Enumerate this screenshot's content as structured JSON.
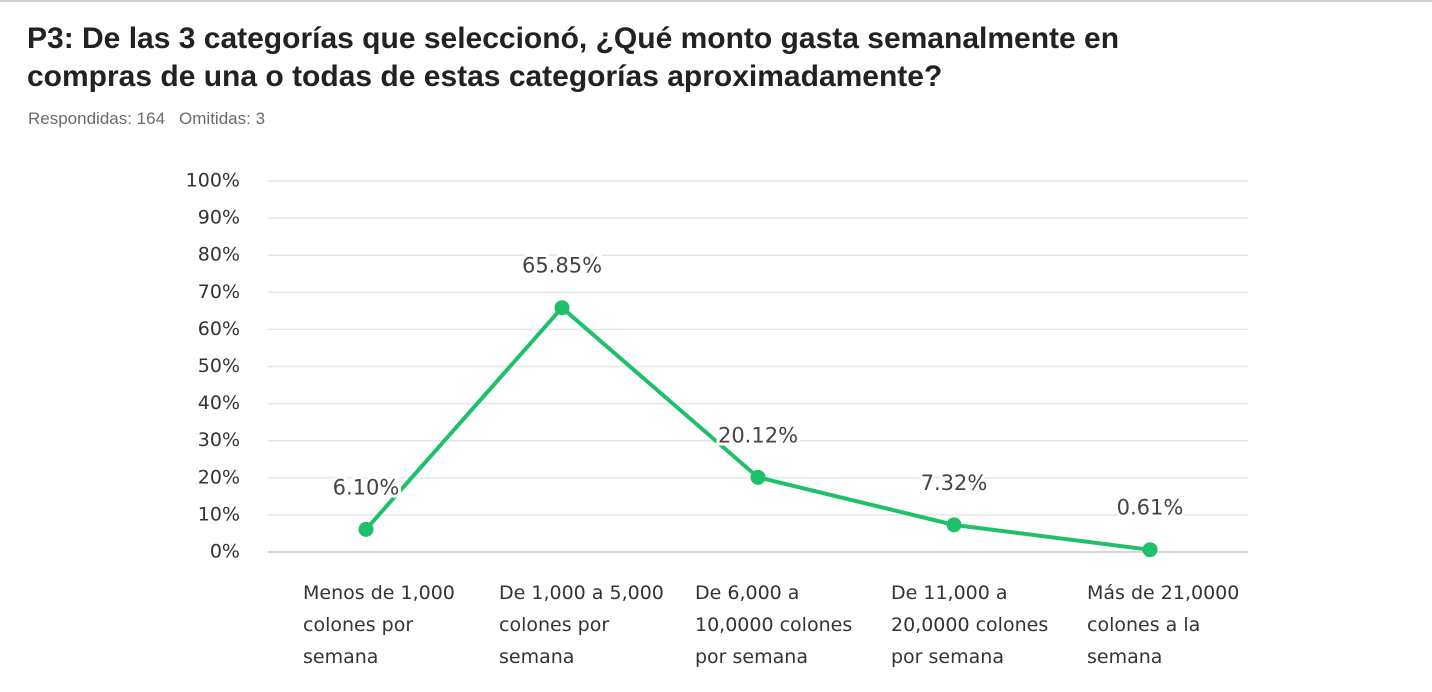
{
  "chart_data": {
    "type": "line",
    "title": "P3: De las 3 categorías que seleccionó, ¿Qué monto gasta semanalmente en compras de una o todas de estas categorías aproximadamente?",
    "answered": "Respondidas: 164",
    "skipped": "Omitidas: 3",
    "categories": [
      "Menos de 1,000 colones por semana",
      "De 1,000 a 5,000 colones por semana",
      "De 6,000 a 10,0000 colones por semana",
      "De 11,000 a 20,0000 colones por semana",
      "Más de 21,0000 colones a la semana"
    ],
    "values": [
      6.1,
      65.85,
      20.12,
      7.32,
      0.61
    ],
    "value_labels": [
      "6.10%",
      "65.85%",
      "20.12%",
      "7.32%",
      "0.61%"
    ],
    "color": "#1ec06a",
    "ylim": [
      0,
      100
    ],
    "yticks": [
      {
        "value": 0,
        "label": "0%"
      },
      {
        "value": 10,
        "label": "10%"
      },
      {
        "value": 20,
        "label": "20%"
      },
      {
        "value": 30,
        "label": "30%"
      },
      {
        "value": 40,
        "label": "40%"
      },
      {
        "value": 50,
        "label": "50%"
      },
      {
        "value": 60,
        "label": "60%"
      },
      {
        "value": 70,
        "label": "70%"
      },
      {
        "value": 80,
        "label": "80%"
      },
      {
        "value": 90,
        "label": "90%"
      },
      {
        "value": 100,
        "label": "100%"
      }
    ],
    "grid": true
  }
}
